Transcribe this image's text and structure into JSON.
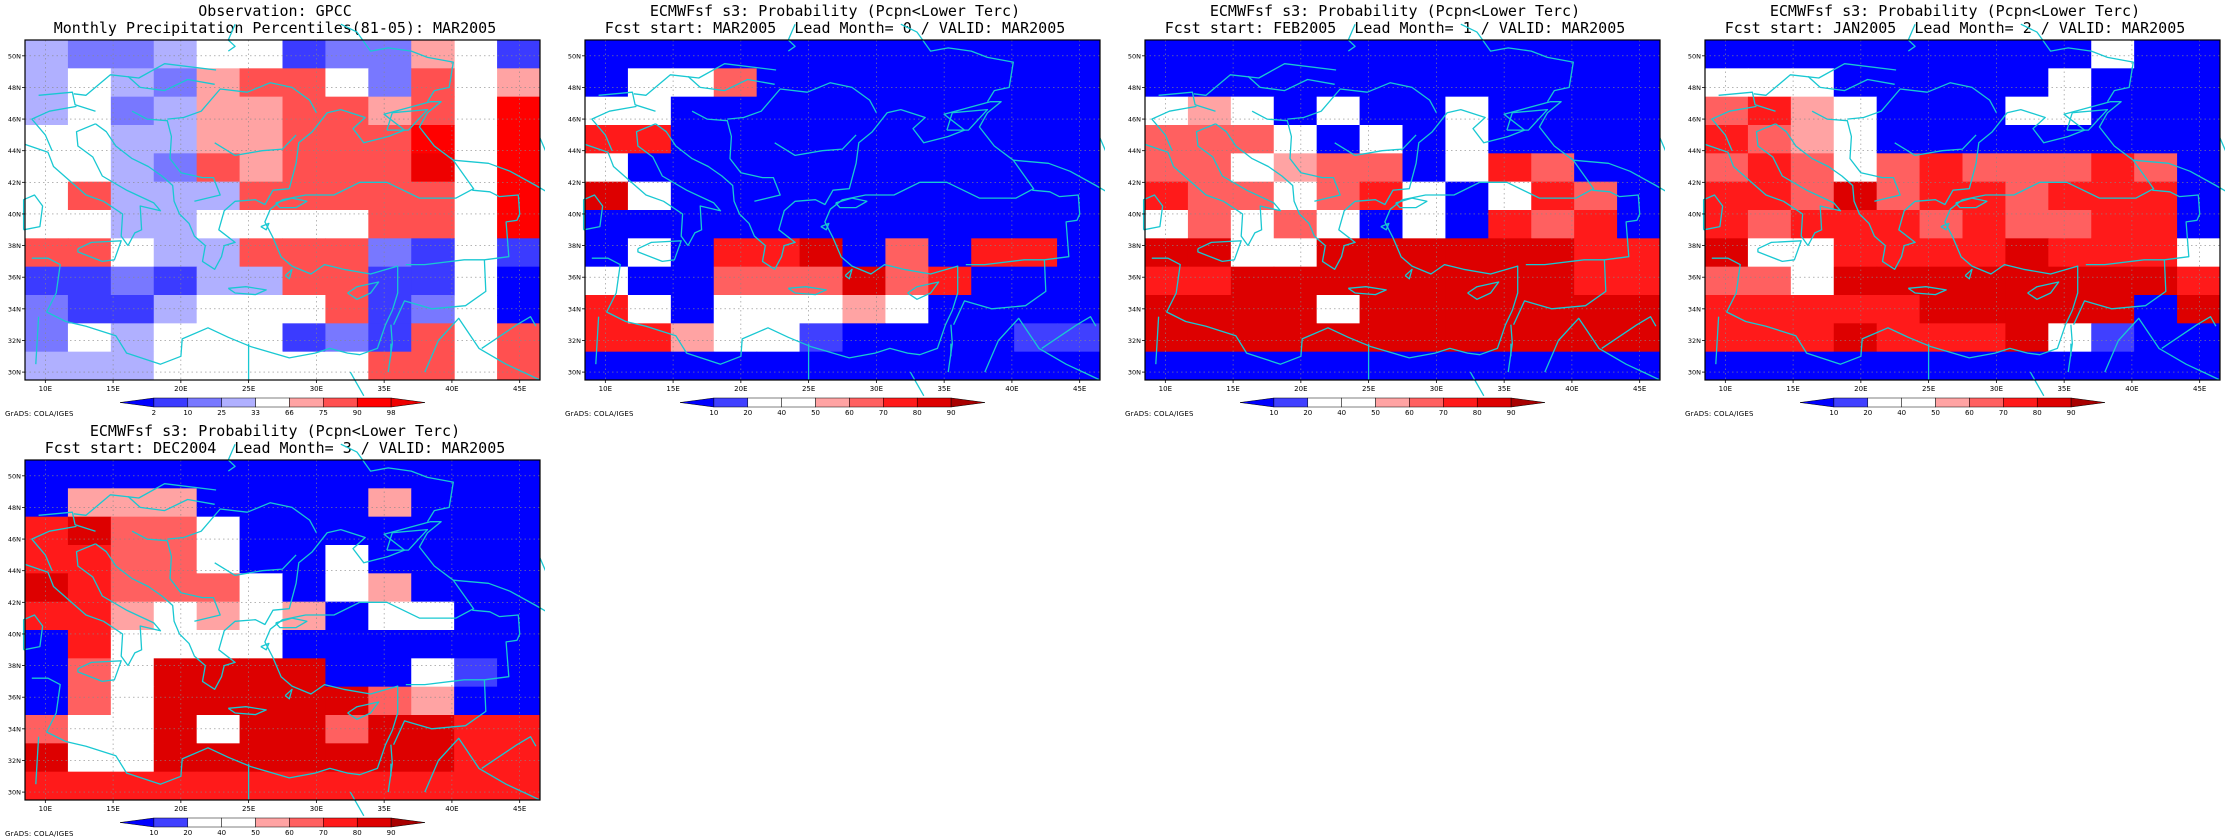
{
  "footer_text": "GrADS: COLA/IGES",
  "axes": {
    "lon_labels": [
      "10E",
      "15E",
      "20E",
      "25E",
      "30E",
      "35E",
      "40E",
      "45E"
    ],
    "lat_labels": [
      "30N",
      "32N",
      "34N",
      "36N",
      "38N",
      "40N",
      "42N",
      "44N",
      "46N",
      "48N",
      "50N"
    ],
    "lon_range": [
      8.5,
      46.5
    ],
    "lat_range": [
      29.5,
      51.0
    ],
    "cell_size_deg": 2.5,
    "grid": "dotted"
  },
  "colorbars": {
    "percentile": {
      "labels": [
        "2",
        "10",
        "25",
        "33",
        "66",
        "75",
        "90",
        "98"
      ],
      "colors": [
        "#0000ff",
        "#3b3bff",
        "#7878ff",
        "#b0b0ff",
        "#ffffff",
        "#ffa3a3",
        "#ff5050",
        "#ff0000",
        "#ee0000"
      ]
    },
    "probability": {
      "labels": [
        "10",
        "20",
        "40",
        "50",
        "60",
        "70",
        "80",
        "90"
      ],
      "colors": [
        "#0000ff",
        "#4040ff",
        "#ffffff",
        "#ffffff",
        "#ffa3a3",
        "#ff6060",
        "#ff1a1a",
        "#dd0000",
        "#a80000"
      ]
    }
  },
  "panels": [
    {
      "id": "obs",
      "title_line1": "Observation: GPCC",
      "title_line2": "Monthly Precipitation Percentiles(81-05): MAR2005",
      "colorbar": "percentile",
      "grid_rows_north_to_south": [
        "3223441225.1",
        "3432566426.5",
        "3423556656.7",
        "4433556667.7",
        "4432656668.7",
        "4633366666.7",
        "4433444466.7",
        "6643366621.1",
        "1121336611.0",
        "2113444612.0",
        "2434441216.6",
        "3334444466.6"
      ]
    },
    {
      "id": "lead0",
      "title_line1": "ECMWFsf s3: Probability (Pcpn<Lower Terc)",
      "title_line2": "Fcst start: MAR2005  Lead Month= 0 / VALID: MAR2005",
      "colorbar": "probability",
      "grid_rows_north_to_south": [
        "000000000000",
        "023500000000",
        "220000000000",
        "660000000000",
        "200000000000",
        "720000000000",
        "000000000000",
        "020667050660",
        "200555756000",
        "630222430000",
        "664321000011",
        "000000000000"
      ]
    },
    {
      "id": "lead1",
      "title_line1": "ECMWFsf s3: Probability (Pcpn<Lower Terc)",
      "title_line2": "Fcst start: FEB2005  Lead Month= 1 / VALID: MAR2005",
      "colorbar": "probability",
      "grid_rows_north_to_south": [
        "000000000000",
        "000000000000",
        "242020020000",
        "555302020000",
        "552455026500",
        "655256202650",
        "252520206560",
        "773277777766",
        "667777777766",
        "777727777777",
        "777777777777",
        "000000000000"
      ]
    },
    {
      "id": "lead2",
      "title_line1": "ECMWFsf s3: Probability (Pcpn<Lower Terc)",
      "title_line2": "Fcst start: JAN2005  Lead Month= 2 / VALID: MAR2005",
      "colorbar": "probability",
      "grid_rows_north_to_south": [
        "000000000200",
        "222000002000",
        "564200022000",
        "654200000000",
        "565256555650",
        "665756656660",
        "656665655660",
        "722666676662",
        "552777777776",
        "666667777707",
        "666766672100",
        "000000000000"
      ]
    },
    {
      "id": "lead3",
      "title_line1": "ECMWFsf s3: Probability (Pcpn<Lower Terc)",
      "title_line2": "Fcst start: DEC2004  Lead Month= 3 / VALID: MAR2005",
      "colorbar": "probability",
      "grid_rows_north_to_south": [
        "000000000000",
        "044400004000",
        "675520000000",
        "665520020000",
        "765552024000",
        "664242402200",
        "062222000000",
        "052777700210",
        "052777775400",
        "522727757766",
        "722777777766",
        "666666666666"
      ]
    }
  ]
}
